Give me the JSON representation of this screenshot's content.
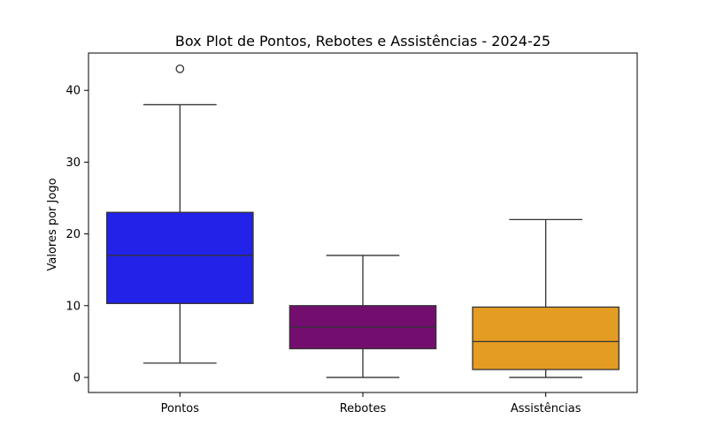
{
  "chart_data": {
    "type": "box",
    "title": "Box Plot de Pontos, Rebotes e Assistências - 2024-25",
    "xlabel": "",
    "ylabel": "Valores por Jogo",
    "ylim": [
      -2.1,
      45.2
    ],
    "yticks": [
      0,
      10,
      20,
      30,
      40
    ],
    "grid": false,
    "categories": [
      "Pontos",
      "Rebotes",
      "Assistências"
    ],
    "boxes": [
      {
        "category": "Pontos",
        "whisker_low": 2,
        "q1": 10.3,
        "median": 17,
        "q3": 23,
        "whisker_high": 38,
        "outliers": [
          43
        ],
        "color": "#2222e8"
      },
      {
        "category": "Rebotes",
        "whisker_low": 0,
        "q1": 4,
        "median": 7,
        "q3": 10,
        "whisker_high": 17,
        "outliers": [],
        "color": "#730e6f"
      },
      {
        "category": "Assistências",
        "whisker_low": 0,
        "q1": 1.1,
        "median": 5,
        "q3": 9.8,
        "whisker_high": 22,
        "outliers": [],
        "color": "#e49c22"
      }
    ]
  }
}
